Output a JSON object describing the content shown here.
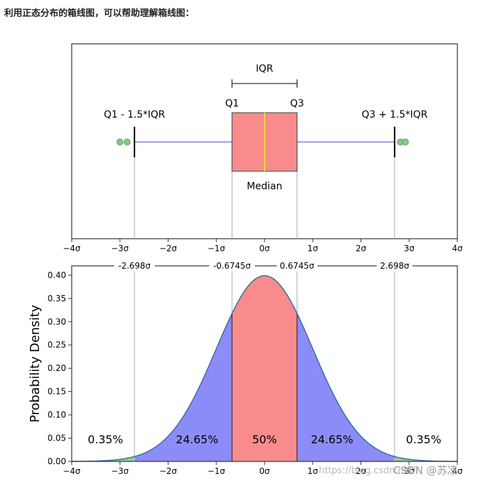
{
  "heading": "利用正态分布的箱线图，可以帮助理解箱线图：",
  "watermark": {
    "url": "https://blog.csdn.net/",
    "brand": "CSDN @苏凉"
  },
  "colors": {
    "box": "#f88c8c",
    "median": "#f5d442",
    "whisker": "#8080e0",
    "outlier": "#88c488",
    "tail": "#90d090",
    "iqr_fill": "#f88c8c",
    "mid_fill": "#8c8cf8",
    "curve": "#3a6aa0"
  },
  "chart_data": [
    {
      "type": "box",
      "xlim": [
        -4,
        4
      ],
      "x_tick_labels": [
        "−4σ",
        "−3σ",
        "−2σ",
        "−1σ",
        "0σ",
        "1σ",
        "2σ",
        "3σ",
        "4σ"
      ],
      "x_ticks": [
        -4,
        -3,
        -2,
        -1,
        0,
        1,
        2,
        3,
        4
      ],
      "q1": -0.6745,
      "median": 0,
      "q3": 0.6745,
      "whisker_low": -2.698,
      "whisker_high": 2.698,
      "outliers": [
        -3.0,
        -2.85,
        2.82,
        2.92
      ],
      "labels": {
        "iqr": "IQR",
        "q1": "Q1",
        "q3": "Q3",
        "lower": "Q1 - 1.5*IQR",
        "upper": "Q3 + 1.5*IQR",
        "median": "Median"
      }
    },
    {
      "type": "area",
      "ylabel": "Probability Density",
      "xlim": [
        -4,
        4
      ],
      "ylim": [
        0,
        0.42
      ],
      "x_tick_labels": [
        "−4σ",
        "−3σ",
        "−2σ",
        "−1σ",
        "0σ",
        "1σ",
        "2σ",
        "3σ",
        "4σ"
      ],
      "x_ticks": [
        -4,
        -3,
        -2,
        -1,
        0,
        1,
        2,
        3,
        4
      ],
      "y_ticks": [
        0.0,
        0.05,
        0.1,
        0.15,
        0.2,
        0.25,
        0.3,
        0.35,
        0.4
      ],
      "y_tick_labels": [
        "0.00",
        "0.05",
        "0.10",
        "0.15",
        "0.20",
        "0.25",
        "0.30",
        "0.35",
        "0.40"
      ],
      "top_markers": [
        {
          "x": -2.698,
          "label": "-2.698σ"
        },
        {
          "x": -0.6745,
          "label": "-0.6745σ"
        },
        {
          "x": 0.6745,
          "label": "0.6745σ"
        },
        {
          "x": 2.698,
          "label": "2.698σ"
        }
      ],
      "regions": [
        {
          "from": -4,
          "to": -2.698,
          "label": "0.35%",
          "label_x": -3.3,
          "fill": "tail"
        },
        {
          "from": -2.698,
          "to": -0.6745,
          "label": "24.65%",
          "label_x": -1.4,
          "fill": "mid"
        },
        {
          "from": -0.6745,
          "to": 0.6745,
          "label": "50%",
          "label_x": 0,
          "fill": "iqr"
        },
        {
          "from": 0.6745,
          "to": 2.698,
          "label": "24.65%",
          "label_x": 1.4,
          "fill": "mid"
        },
        {
          "from": 2.698,
          "to": 4,
          "label": "0.35%",
          "label_x": 3.3,
          "fill": "tail"
        }
      ]
    }
  ]
}
